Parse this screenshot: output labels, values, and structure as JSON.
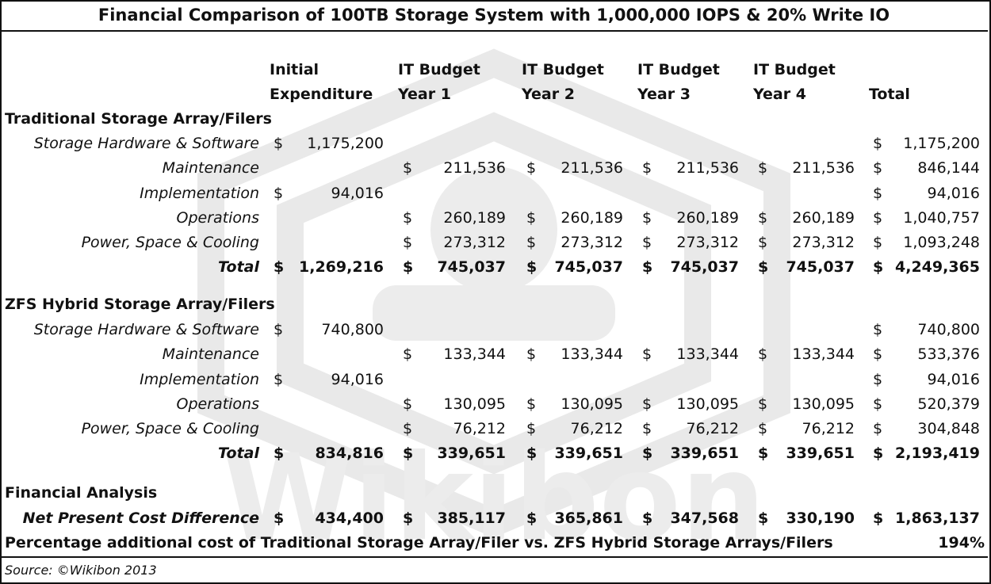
{
  "title": "Financial Comparison of 100TB Storage System with 1,000,000 IOPS & 20% Write IO",
  "headers": [
    [
      "Initial",
      "Expenditure"
    ],
    [
      "IT Budget",
      "Year 1"
    ],
    [
      "IT Budget",
      "Year 2"
    ],
    [
      "IT Budget",
      "Year 3"
    ],
    [
      "IT Budget",
      "Year 4"
    ],
    [
      "",
      "Total"
    ]
  ],
  "currency": "$",
  "traditional": {
    "heading": "Traditional Storage Array/Filers",
    "rows": [
      {
        "label": "Storage Hardware & Software",
        "values": [
          "1,175,200",
          "",
          "",
          "",
          "",
          "1,175,200"
        ]
      },
      {
        "label": "Maintenance",
        "values": [
          "",
          "211,536",
          "211,536",
          "211,536",
          "211,536",
          "846,144"
        ]
      },
      {
        "label": "Implementation",
        "values": [
          "94,016",
          "",
          "",
          "",
          "",
          "94,016"
        ]
      },
      {
        "label": "Operations",
        "values": [
          "",
          "260,189",
          "260,189",
          "260,189",
          "260,189",
          "1,040,757"
        ]
      },
      {
        "label": "Power, Space & Cooling",
        "values": [
          "",
          "273,312",
          "273,312",
          "273,312",
          "273,312",
          "1,093,248"
        ]
      }
    ],
    "total": {
      "label": "Total",
      "values": [
        "1,269,216",
        "745,037",
        "745,037",
        "745,037",
        "745,037",
        "4,249,365"
      ]
    }
  },
  "zfs": {
    "heading": "ZFS Hybrid Storage Array/Filers",
    "rows": [
      {
        "label": "Storage Hardware & Software",
        "values": [
          "740,800",
          "",
          "",
          "",
          "",
          "740,800"
        ]
      },
      {
        "label": "Maintenance",
        "values": [
          "",
          "133,344",
          "133,344",
          "133,344",
          "133,344",
          "533,376"
        ]
      },
      {
        "label": "Implementation",
        "values": [
          "94,016",
          "",
          "",
          "",
          "",
          "94,016"
        ]
      },
      {
        "label": "Operations",
        "values": [
          "",
          "130,095",
          "130,095",
          "130,095",
          "130,095",
          "520,379"
        ]
      },
      {
        "label": "Power, Space & Cooling",
        "values": [
          "",
          "76,212",
          "76,212",
          "76,212",
          "76,212",
          "304,848"
        ]
      }
    ],
    "total": {
      "label": "Total",
      "values": [
        "834,816",
        "339,651",
        "339,651",
        "339,651",
        "339,651",
        "2,193,419"
      ]
    }
  },
  "analysis": {
    "heading": "Financial Analysis",
    "row": {
      "label": "Net Present Cost Difference",
      "values": [
        "434,400",
        "385,117",
        "365,861",
        "347,568",
        "330,190",
        "1,863,137"
      ]
    },
    "percentage_label": "Percentage additional cost of Traditional Storage Array/Filer vs. ZFS Hybrid Storage Arrays/Filers",
    "percentage_value": "194%"
  },
  "watermark": "Wikibon",
  "source": "Source: ©Wikibon 2013"
}
